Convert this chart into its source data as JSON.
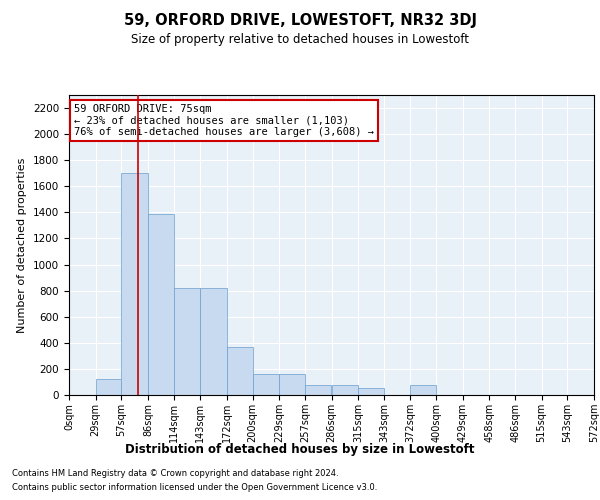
{
  "title": "59, ORFORD DRIVE, LOWESTOFT, NR32 3DJ",
  "subtitle": "Size of property relative to detached houses in Lowestoft",
  "xlabel": "Distribution of detached houses by size in Lowestoft",
  "ylabel": "Number of detached properties",
  "bar_color": "#c8daf0",
  "bar_edge_color": "#6a9fd0",
  "background_color": "#e8f0f8",
  "grid_color": "#ffffff",
  "annotation_box_edgecolor": "#cc0000",
  "annotation_text": "59 ORFORD DRIVE: 75sqm\n← 23% of detached houses are smaller (1,103)\n76% of semi-detached houses are larger (3,608) →",
  "property_line_x": 75,
  "bin_edges": [
    0,
    29,
    57,
    86,
    114,
    143,
    172,
    200,
    229,
    257,
    286,
    315,
    343,
    372,
    400,
    429,
    458,
    486,
    515,
    543,
    572
  ],
  "bar_heights": [
    0,
    120,
    1700,
    1390,
    820,
    820,
    370,
    160,
    160,
    80,
    80,
    50,
    0,
    80,
    0,
    0,
    0,
    0,
    0,
    0
  ],
  "ylim": [
    0,
    2300
  ],
  "yticks": [
    0,
    200,
    400,
    600,
    800,
    1000,
    1200,
    1400,
    1600,
    1800,
    2000,
    2200
  ],
  "xlim": [
    0,
    572
  ],
  "footnote1": "Contains HM Land Registry data © Crown copyright and database right 2024.",
  "footnote2": "Contains public sector information licensed under the Open Government Licence v3.0."
}
